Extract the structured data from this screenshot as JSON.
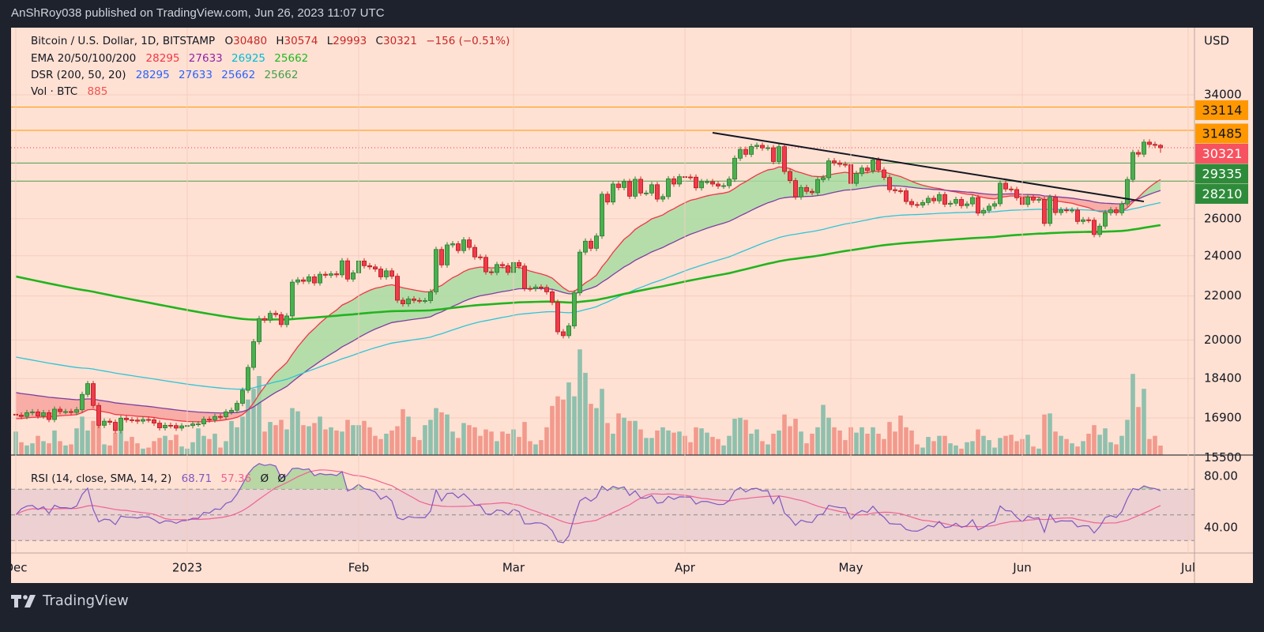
{
  "header": {
    "published": "AnShRoy038 published on TradingView.com, Jun 26, 2023 11:07 UTC"
  },
  "legend": {
    "symbol": "Bitcoin / U.S. Dollar, 1D, BITSTAMP",
    "o_label": "O",
    "o": "30480",
    "h_label": "H",
    "h": "30574",
    "l_label": "L",
    "l": "29993",
    "c_label": "C",
    "c": "30321",
    "change": "−156 (−0.51%)",
    "ema_label": "EMA 20/50/100/200",
    "ema_values": [
      "28295",
      "27633",
      "26925",
      "25662"
    ],
    "dsr_label": "DSR (200, 50, 20)",
    "dsr_values": [
      "28295",
      "27633",
      "25662",
      "25662"
    ],
    "vol_label": "Vol · BTC",
    "vol_value": "885"
  },
  "rsi_legend": {
    "label": "RSI (14, close, SMA, 14, 2)",
    "rsi": "68.71",
    "sma": "57.36",
    "markers": [
      "Ø",
      "Ø"
    ]
  },
  "price_axis": {
    "currency": "USD",
    "ticks": [
      {
        "label": "34000",
        "value": 34000
      },
      {
        "label": "26000",
        "value": 26000
      },
      {
        "label": "24000",
        "value": 24000
      },
      {
        "label": "22000",
        "value": 22000
      },
      {
        "label": "20000",
        "value": 20000
      },
      {
        "label": "18400",
        "value": 18400
      },
      {
        "label": "16900",
        "value": 16900
      },
      {
        "label": "15500",
        "value": 15500
      }
    ],
    "badges": [
      {
        "label": "33114",
        "value": 33114,
        "bg": "#ff9800",
        "fg": "#131722"
      },
      {
        "label": "31485",
        "value": 31485,
        "bg": "#ff9800",
        "fg": "#131722"
      },
      {
        "label": "30321",
        "value": 30321,
        "bg": "#f7525f",
        "fg": "#ffffff"
      },
      {
        "label": "29335",
        "value": 29335,
        "bg": "#2e8b3a",
        "fg": "#ffffff"
      },
      {
        "label": "28210",
        "value": 28210,
        "bg": "#2e8b3a",
        "fg": "#ffffff"
      }
    ]
  },
  "rsi_axis": {
    "ticks": [
      {
        "label": "80.00",
        "value": 80
      },
      {
        "label": "40.00",
        "value": 40
      }
    ]
  },
  "time_axis": [
    {
      "label": "Dec",
      "date": "2022-12-01"
    },
    {
      "label": "2023",
      "date": "2023-01-01"
    },
    {
      "label": "Feb",
      "date": "2023-02-01"
    },
    {
      "label": "Mar",
      "date": "2023-03-01"
    },
    {
      "label": "Apr",
      "date": "2023-04-01"
    },
    {
      "label": "May",
      "date": "2023-05-01"
    },
    {
      "label": "Jun",
      "date": "2023-06-01"
    },
    {
      "label": "Jul",
      "date": "2023-07-01"
    }
  ],
  "footer": {
    "brand": "TradingView"
  },
  "colors": {
    "up": "#4caf50",
    "down": "#ef3b4c",
    "vol_up": "#8fc0ad",
    "vol_down": "#f29a8d",
    "background": "#ffe1d3"
  },
  "chart_data": {
    "type": "candlestick",
    "symbol": "BTCUSD",
    "interval": "1D",
    "y_scale": "log",
    "ylim": [
      15500,
      36000
    ],
    "grid": true,
    "last_ohlc": {
      "date": "2023-06-26",
      "open": 30480,
      "high": 30574,
      "low": 29993,
      "close": 30321
    },
    "closes_by_month": {
      "2022-12": [
        17000,
        16950,
        17090,
        17120,
        16970,
        17090,
        16840,
        17220,
        17130,
        17130,
        17100,
        17200,
        17780,
        18200,
        17360,
        16630,
        16780,
        16740,
        16440,
        16890,
        16830,
        16820,
        16780,
        16840,
        16830,
        16710,
        16540,
        16630,
        16620,
        16530,
        16610
      ],
      "2023-01": [
        16620,
        16680,
        16680,
        16850,
        16830,
        16950,
        16940,
        17120,
        17180,
        17440,
        17940,
        18850,
        19930,
        20950,
        20880,
        21190,
        21130,
        20680,
        21070,
        22670,
        22780,
        22710,
        22930,
        22630,
        23060,
        23010,
        23080,
        23030,
        23740,
        22820,
        23130
      ],
      "2023-02": [
        23730,
        23490,
        23430,
        23320,
        22930,
        23230,
        22960,
        21800,
        21630,
        21860,
        21790,
        21780,
        21780,
        22200,
        24330,
        23530,
        24570,
        24630,
        24270,
        24840,
        24440,
        23940,
        23920,
        23180,
        23150,
        23550,
        23490,
        23150
      ],
      "2023-03": [
        23650,
        23470,
        22360,
        22350,
        22430,
        22410,
        22200,
        21700,
        20360,
        20190,
        20620,
        22150,
        24190,
        24770,
        24390,
        25050,
        27420,
        26960,
        28030,
        27820,
        28180,
        27300,
        28320,
        27490,
        27490,
        27990,
        27130,
        27280,
        28350,
        28030,
        28480
      ],
      "2023-04": [
        28460,
        28450,
        27800,
        28170,
        28170,
        28030,
        27910,
        27930,
        28330,
        29640,
        30210,
        29890,
        30400,
        30480,
        30310,
        30320,
        29430,
        30390,
        28800,
        28240,
        27260,
        27820,
        27590,
        27510,
        28300,
        28420,
        29470,
        29340,
        29250,
        29230
      ],
      "2023-05": [
        28070,
        28670,
        29020,
        28850,
        29530,
        28900,
        28430,
        27690,
        27630,
        27620,
        26990,
        26810,
        26780,
        26930,
        27180,
        27030,
        27400,
        26830,
        26890,
        27110,
        26750,
        26850,
        27220,
        26320,
        26480,
        26720,
        26860,
        28080,
        27730,
        27700,
        27210
      ],
      "2023-06": [
        26820,
        27250,
        27070,
        27110,
        25740,
        27240,
        26350,
        26500,
        26480,
        26490,
        25850,
        25940,
        25920,
        25130,
        25590,
        26340,
        26510,
        26340,
        26850,
        28310,
        30010,
        29900,
        30690,
        30540,
        30480,
        30321
      ]
    },
    "volume_by_month": {
      "2022-12": [
        2200,
        1200,
        900,
        1100,
        1800,
        1300,
        1100,
        2300,
        1300,
        900,
        1000,
        2500,
        3600,
        2300,
        3200,
        2900,
        1000,
        900,
        2100,
        2200,
        1300,
        1700,
        1100,
        600,
        700,
        1300,
        1600,
        1800,
        1400,
        1900,
        800
      ],
      "2023-01": [
        600,
        1200,
        2500,
        1800,
        1500,
        2000,
        700,
        1300,
        3200,
        2600,
        3600,
        5200,
        6200,
        7400,
        2200,
        3100,
        2800,
        3300,
        2400,
        4400,
        4100,
        2800,
        2700,
        3000,
        3600,
        2400,
        2600,
        2300,
        2200,
        3300,
        2800
      ],
      "2023-02": [
        2800,
        3200,
        2600,
        1800,
        1500,
        2000,
        2300,
        2700,
        4300,
        3600,
        1700,
        1400,
        2800,
        3300,
        4400,
        4000,
        3800,
        2200,
        1600,
        3000,
        2800,
        2600,
        1800,
        2400,
        2200,
        1300,
        2200,
        2000
      ],
      "2023-03": [
        2400,
        1700,
        3100,
        1300,
        1000,
        1400,
        2600,
        4600,
        5500,
        5200,
        6800,
        5500,
        9900,
        7700,
        4800,
        4400,
        6200,
        3000,
        2000,
        3900,
        3500,
        3200,
        3200,
        2400,
        1600,
        1600,
        2300,
        2600,
        2300,
        2100,
        2200
      ],
      "2023-04": [
        1800,
        1200,
        2600,
        2500,
        2100,
        1700,
        1500,
        900,
        1800,
        3400,
        3500,
        3300,
        2000,
        2400,
        1300,
        1000,
        2000,
        2300,
        3800,
        2700,
        3400,
        2200,
        1100,
        2000,
        2600,
        4700,
        3500,
        2600,
        2300,
        1400
      ],
      "2023-05": [
        2600,
        2100,
        2600,
        2000,
        2600,
        2000,
        1500,
        3100,
        2200,
        3700,
        2600,
        2300,
        1000,
        700,
        1700,
        1300,
        1800,
        1800,
        1100,
        900,
        600,
        1200,
        1300,
        2400,
        1800,
        1400,
        700,
        1600,
        1800,
        1900,
        1300
      ],
      "2023-06": [
        1500,
        1900,
        800,
        600,
        3800,
        3900,
        2200,
        1800,
        1500,
        1100,
        800,
        1300,
        2000,
        2800,
        1900,
        2500,
        1200,
        1000,
        1800,
        3300,
        7600,
        4500,
        6200,
        1500,
        1800,
        885
      ]
    },
    "ema": [
      {
        "period": 20,
        "color": "#f23645",
        "first_value": 16870,
        "last_value": 28295
      },
      {
        "period": 50,
        "color": "#7b3fa0",
        "first_value": 17850,
        "last_value": 27633
      },
      {
        "period": 100,
        "color": "#2ec4d6",
        "first_value": 19280,
        "last_value": 26925
      },
      {
        "period": 200,
        "color": "#22b41e",
        "first_value": 22950,
        "last_value": 25662
      }
    ],
    "dsr_fill": {
      "up_color": "#a8dca2",
      "down_color": "#f7a39e"
    },
    "levels": [
      {
        "price": 33114,
        "color": "#ff9800"
      },
      {
        "price": 31485,
        "color": "#ff9800"
      },
      {
        "price": 29335,
        "color": "#4c9a4c"
      },
      {
        "price": 28210,
        "color": "#4c9a4c"
      }
    ],
    "trendline": {
      "from": {
        "date": "2023-04-06",
        "price": 31320
      },
      "to": {
        "date": "2023-06-23",
        "price": 26990
      },
      "color": "#131722"
    },
    "rsi": {
      "period": 14,
      "sma_period": 14,
      "last_rsi": 68.71,
      "last_sma": 57.36,
      "bands": [
        70,
        50,
        30
      ],
      "ylim": [
        20,
        95
      ],
      "rsi_color": "#7e57c2",
      "sma_color": "#f06292"
    }
  }
}
